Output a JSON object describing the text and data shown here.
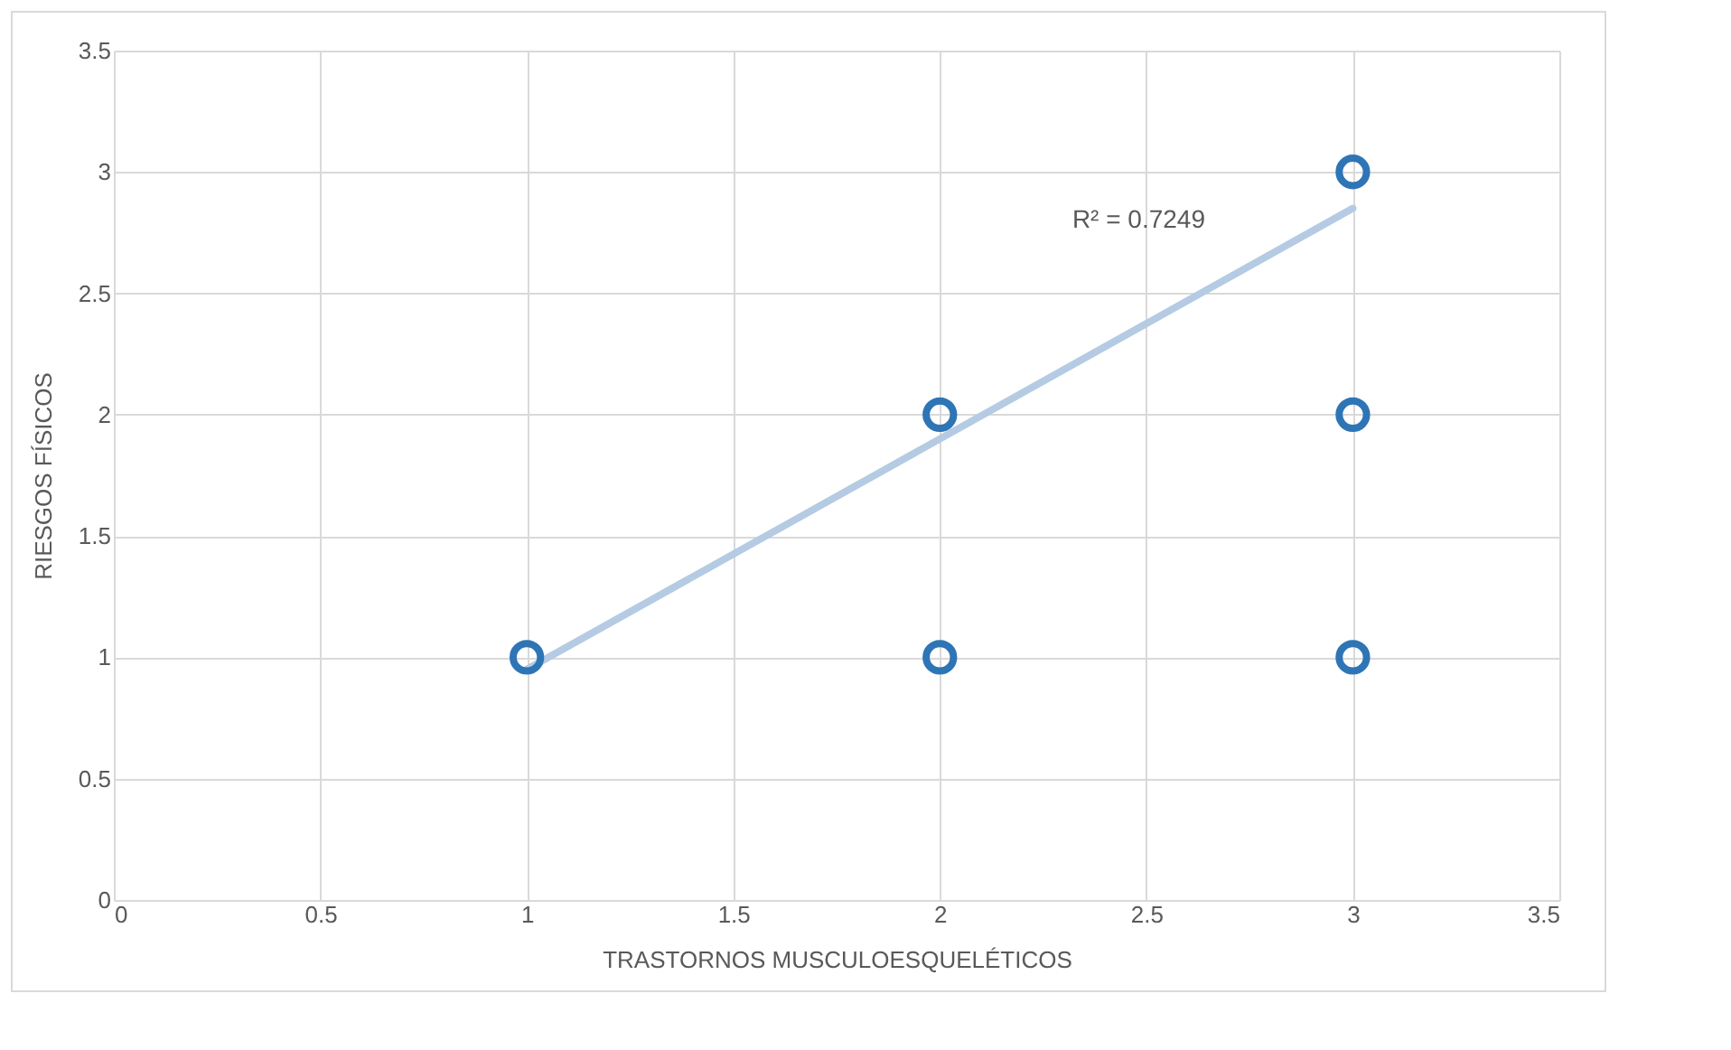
{
  "chart_data": {
    "type": "scatter",
    "xlabel": "TRASTORNOS MUSCULOESQUELÉTICOS",
    "ylabel": "RIESGOS FÍSICOS",
    "xlim": [
      0,
      3.5
    ],
    "xticks": [
      0,
      0.5,
      1,
      1.5,
      2,
      2.5,
      3,
      3.5
    ],
    "ylim": [
      0,
      3.5
    ],
    "yticks": [
      0,
      0.5,
      1,
      1.5,
      2,
      2.5,
      3,
      3.5
    ],
    "grid": true,
    "series": [
      {
        "color": "#2e75b6",
        "marker": "circle",
        "x": [
          1,
          2,
          2,
          3,
          3,
          3
        ],
        "values": [
          1,
          2,
          1,
          3,
          2,
          1
        ]
      },
      {
        "type": "line",
        "marker": "none",
        "color": "#b4cbe3",
        "x": [
          1,
          3
        ],
        "values": [
          0.95,
          2.85
        ]
      }
    ],
    "annotations": [
      "R² = 0.7249"
    ]
  }
}
